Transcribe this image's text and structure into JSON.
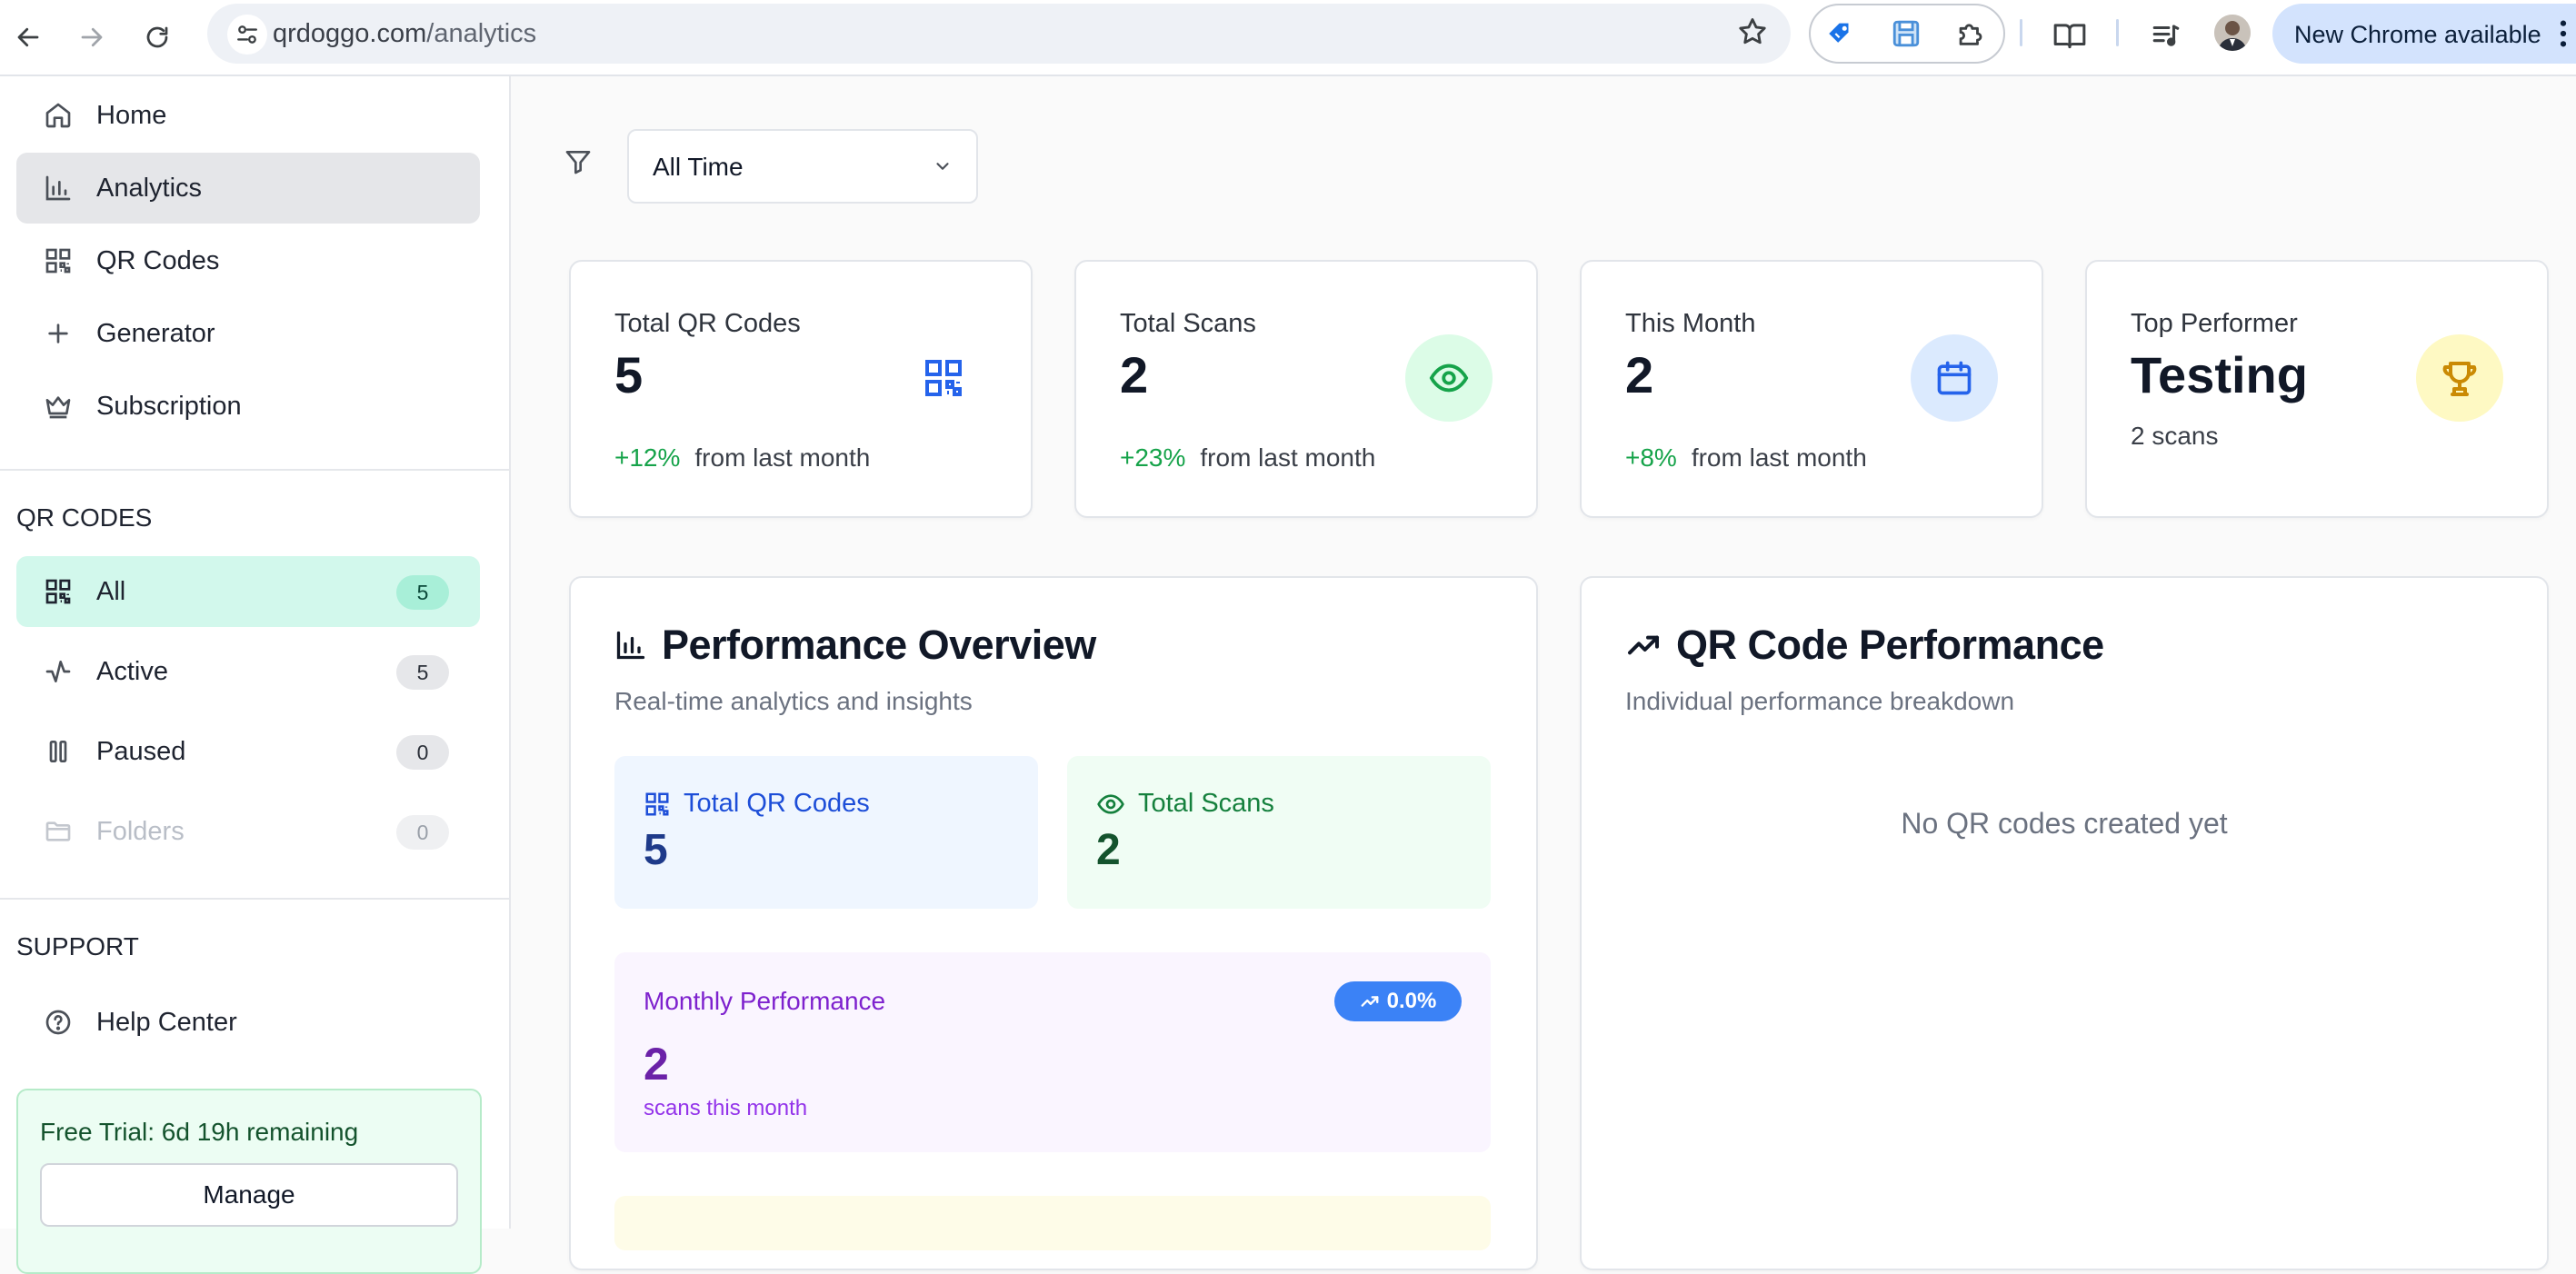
{
  "browser": {
    "url_host": "qrdoggo.com",
    "url_path": "/analytics",
    "update_label": "New Chrome available"
  },
  "sidebar": {
    "nav": [
      {
        "label": "Home",
        "icon": "home-icon"
      },
      {
        "label": "Analytics",
        "icon": "bar-chart-icon",
        "active": true
      },
      {
        "label": "QR Codes",
        "icon": "qr-code-icon"
      },
      {
        "label": "Generator",
        "icon": "plus-icon"
      },
      {
        "label": "Subscription",
        "icon": "crown-icon"
      }
    ],
    "qr_section_title": "QR CODES",
    "qr_filters": [
      {
        "label": "All",
        "count": "5",
        "icon": "qr-code-icon",
        "selected": true
      },
      {
        "label": "Active",
        "count": "5",
        "icon": "activity-icon"
      },
      {
        "label": "Paused",
        "count": "0",
        "icon": "pause-icon"
      },
      {
        "label": "Folders",
        "count": "0",
        "icon": "folder-icon",
        "disabled": true
      }
    ],
    "support_title": "SUPPORT",
    "support_items": [
      {
        "label": "Help Center",
        "icon": "help-circle-icon"
      }
    ],
    "trial": {
      "text": "Free Trial: 6d 19h remaining",
      "button": "Manage"
    }
  },
  "filter": {
    "selected": "All Time"
  },
  "stats": [
    {
      "title": "Total QR Codes",
      "value": "5",
      "change": "+12%",
      "change_suffix": "from last month",
      "icon": "qr-code-icon",
      "color": "#2563eb"
    },
    {
      "title": "Total Scans",
      "value": "2",
      "change": "+23%",
      "change_suffix": "from last month",
      "icon": "eye-icon",
      "color": "#16a34a"
    },
    {
      "title": "This Month",
      "value": "2",
      "change": "+8%",
      "change_suffix": "from last month",
      "icon": "calendar-icon",
      "color": "#2563eb"
    },
    {
      "title": "Top Performer",
      "value": "Testing",
      "subtext": "2 scans",
      "icon": "trophy-icon",
      "color": "#ca8a04"
    }
  ],
  "performance": {
    "title": "Performance Overview",
    "subtitle": "Real-time analytics and insights",
    "total_qr_label": "Total QR Codes",
    "total_qr_value": "5",
    "total_scans_label": "Total Scans",
    "total_scans_value": "2",
    "monthly_label": "Monthly Performance",
    "monthly_badge": "0.0%",
    "monthly_value": "2",
    "monthly_sub": "scans this month"
  },
  "qr_performance": {
    "title": "QR Code Performance",
    "subtitle": "Individual performance breakdown",
    "empty": "No QR codes created yet"
  }
}
